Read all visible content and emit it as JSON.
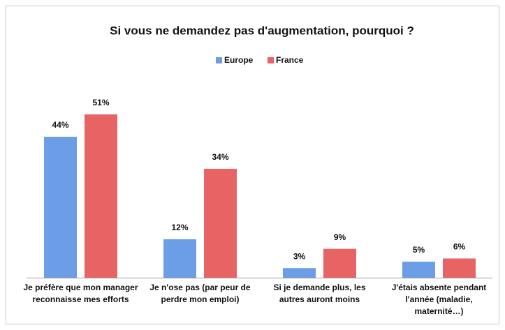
{
  "chart_data": {
    "type": "bar",
    "title": "Si vous ne demandez pas d'augmentation, pourquoi ?",
    "categories": [
      "Je préfère que mon manager reconnaisse mes efforts",
      "Je n'ose pas (par peur de perdre mon emploi)",
      "Si je demande plus, les autres auront moins",
      "J'étais absente pendant l'année (maladie, maternité…)"
    ],
    "series": [
      {
        "name": "Europe",
        "color": "#6b9ee6",
        "values": [
          44,
          12,
          3,
          5
        ],
        "value_labels": [
          "44%",
          "12%",
          "3%",
          "5%"
        ]
      },
      {
        "name": "France",
        "color": "#e86464",
        "values": [
          51,
          34,
          9,
          6
        ],
        "value_labels": [
          "51%",
          "34%",
          "9%",
          "6%"
        ]
      }
    ]
  }
}
